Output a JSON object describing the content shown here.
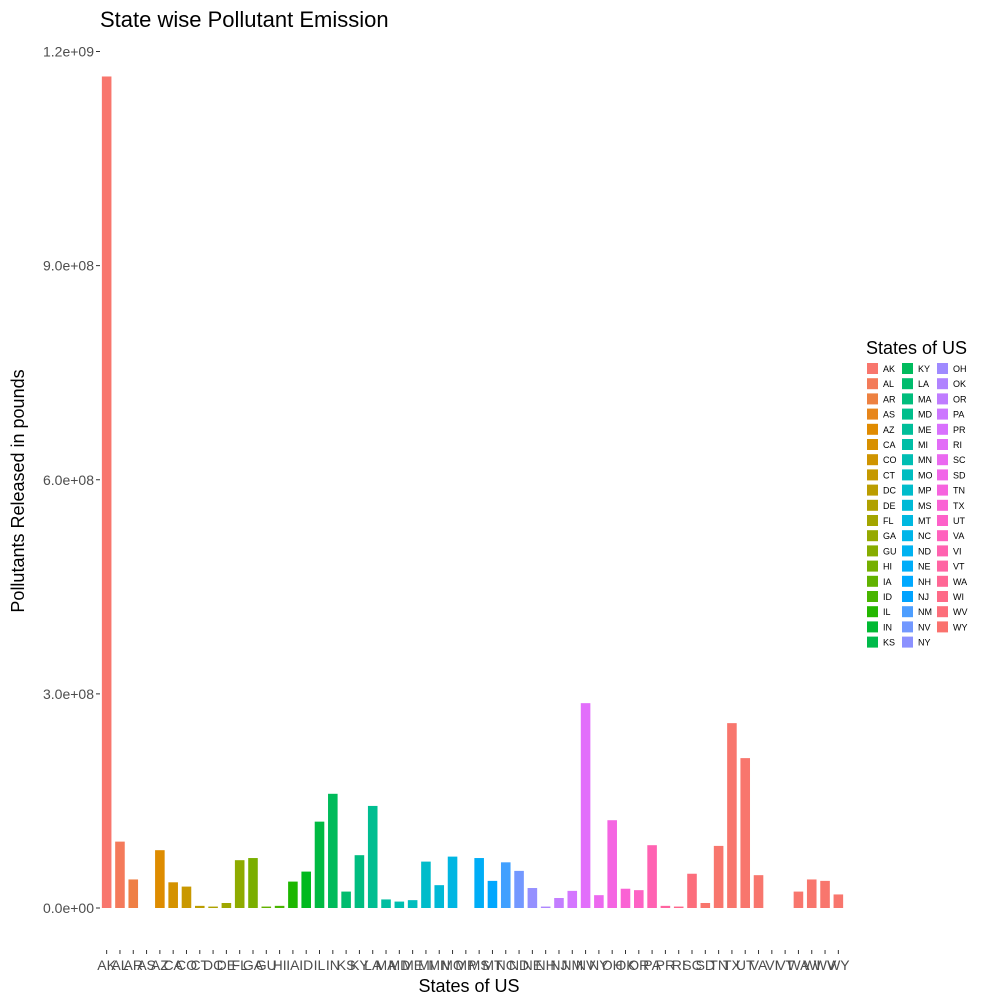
{
  "chart_data": {
    "type": "bar",
    "title": "State wise Pollutant Emission",
    "xlabel": "States of US",
    "ylabel": "Pollutants Released in pounds",
    "ylim": [
      -20000000,
      1200000000
    ],
    "yticks": [
      0,
      300000000,
      600000000,
      900000000,
      1200000000
    ],
    "ytick_labels": [
      "0.0e+00",
      "3.0e+08",
      "6.0e+08",
      "9.0e+08",
      "1.2e+09"
    ],
    "grid": false,
    "legend_title": "States of US",
    "legend_position": "right",
    "legend_columns": 3,
    "categories": [
      "AK",
      "AL",
      "AR",
      "AS",
      "AZ",
      "CA",
      "CO",
      "CT",
      "DC",
      "DE",
      "FL",
      "GA",
      "GU",
      "HI",
      "IA",
      "ID",
      "IL",
      "IN",
      "KS",
      "KY",
      "LA",
      "MA",
      "MD",
      "ME",
      "MI",
      "MN",
      "MO",
      "MP",
      "MS",
      "MT",
      "NC",
      "ND",
      "NE",
      "NH",
      "NJ",
      "NM",
      "NV",
      "NY",
      "OH",
      "OK",
      "OR",
      "PA",
      "PR",
      "RI",
      "SC",
      "SD",
      "TN",
      "TX",
      "UT",
      "VA",
      "VI",
      "VT",
      "WA",
      "WI",
      "WV",
      "WY"
    ],
    "values": [
      1165000000,
      93000000,
      40000000,
      0,
      81000000,
      36000000,
      30000000,
      3000000,
      2000000,
      7000000,
      67000000,
      70000000,
      2000000,
      3000000,
      37000000,
      51000000,
      121000000,
      160000000,
      23000000,
      74000000,
      143000000,
      12000000,
      9000000,
      11000000,
      65000000,
      32000000,
      72000000,
      0,
      70000000,
      38000000,
      64000000,
      52000000,
      28000000,
      2000000,
      14000000,
      24000000,
      287000000,
      18000000,
      123000000,
      27000000,
      25000000,
      88000000,
      3000000,
      2000000,
      48000000,
      7000000,
      87000000,
      259000000,
      210000000,
      46000000,
      0,
      0,
      23000000,
      40000000,
      38000000,
      19000000
    ],
    "colors": [
      "#F8766D",
      "#F47A5B",
      "#EF7F45",
      "#E88526",
      "#DE8C00",
      "#D49200",
      "#C99800",
      "#BB9D00",
      "#AEA200",
      "#9FA700",
      "#8EAB00",
      "#7AAF00",
      "#64B200",
      "#49B500",
      "#1DB700",
      "#00B91E",
      "#00BA42",
      "#00BB5A",
      "#00BC6E",
      "#00BD80",
      "#00BE91",
      "#00BEA0",
      "#00BEAF",
      "#00BDBD",
      "#00BCCA",
      "#00B9D6",
      "#00B6E2",
      "#00B2EC",
      "#00ADF6",
      "#00A7FE",
      "#41A0FF",
      "#7398FF",
      "#9590FF",
      "#AF87FF",
      "#C37EFF",
      "#D476FF",
      "#E26EFB",
      "#EC69EF",
      "#F465E2",
      "#FA62D4",
      "#FD62C4",
      "#FF62B2",
      "#FF64A0",
      "#FF688C",
      "#FC6D7C",
      "#F8766D",
      "#F8766D",
      "#F8766D",
      "#F8766D",
      "#F8766D",
      "#F8766D",
      "#F8766D",
      "#F8766D",
      "#F8766D",
      "#F8766D",
      "#F8766D"
    ],
    "legend_colors": [
      "#F8766D",
      "#F37B59",
      "#ED8141",
      "#E7861B",
      "#E08B00",
      "#D89000",
      "#CF9400",
      "#C59900",
      "#BB9D00",
      "#B0A100",
      "#A3A500",
      "#95A900",
      "#86AC00",
      "#75AF00",
      "#61B200",
      "#49B500",
      "#24B700",
      "#00B932",
      "#00BA4A",
      "#00BB5D",
      "#00BC6D",
      "#00BD7C",
      "#00BE8B",
      "#00BE99",
      "#00BEA6",
      "#00BEB3",
      "#00BDC0",
      "#00BCCB",
      "#00BAD6",
      "#00B8E0",
      "#00B5E9",
      "#00B2F1",
      "#00ADF9",
      "#00A9FF",
      "#00A3FF",
      "#4D9EFF",
      "#7298FF",
      "#8B91FF",
      "#9F8AFF",
      "#B083FF",
      "#BF7CFF",
      "#CC76FF",
      "#D870FD",
      "#E26CF7",
      "#EA69F0",
      "#F166E8",
      "#F664DE",
      "#FA62D4",
      "#FD61C9",
      "#FF61BD",
      "#FF62B0",
      "#FF64A3",
      "#FF6795",
      "#FE6A87",
      "#FC6E7A",
      "#FA716D"
    ]
  }
}
